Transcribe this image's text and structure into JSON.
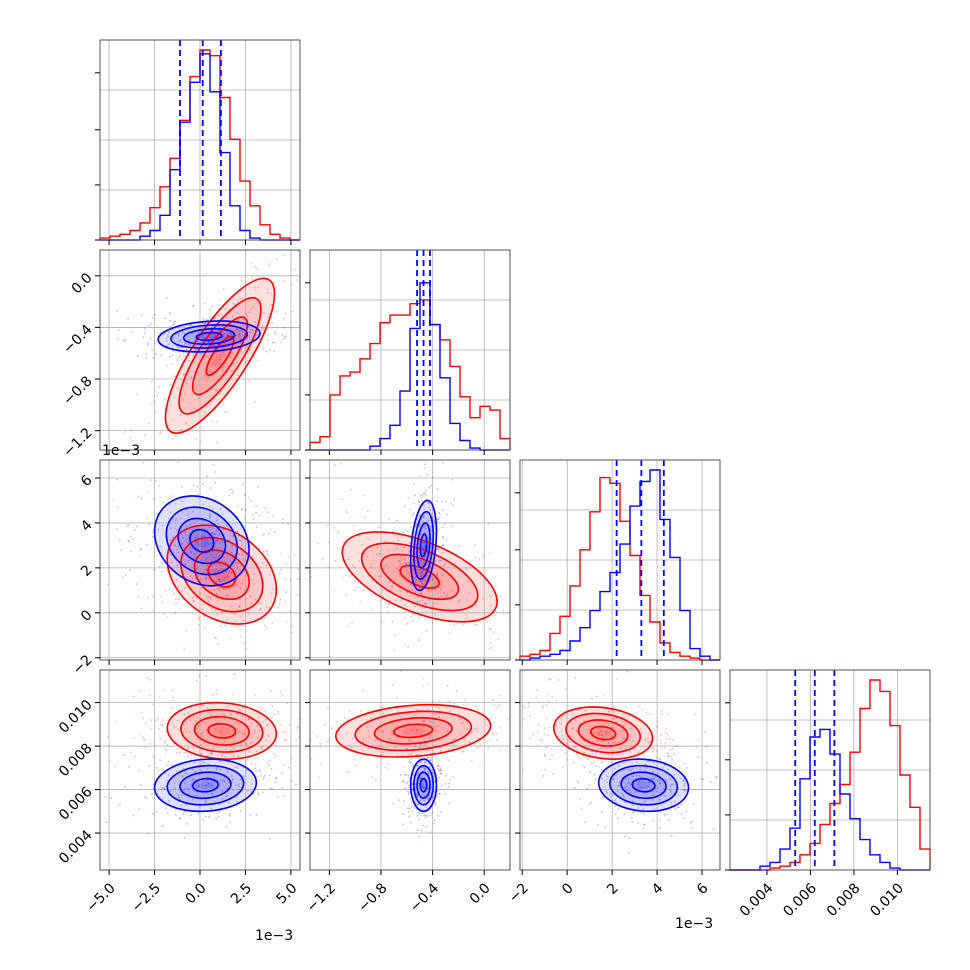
{
  "chart_data": {
    "type": "corner",
    "series": [
      {
        "name": "",
        "color": "#0000ff"
      },
      {
        "name": "",
        "color": "#ff0000"
      }
    ],
    "params": [
      {
        "range": [
          -5.5,
          5.5
        ],
        "ticks": [
          -5.0,
          -2.5,
          0.0,
          2.5,
          5.0
        ],
        "tick_labels": [
          "−5.0",
          "−2.5",
          "0.0",
          "2.5",
          "5.0"
        ],
        "offset_label": "1e−3",
        "quantiles_blue": [
          -1.1,
          0.15,
          1.15
        ],
        "hist_blue": [
          0,
          0,
          0,
          0,
          0.02,
          0.05,
          0.13,
          0.37,
          0.62,
          0.83,
          0.98,
          0.78,
          0.46,
          0.18,
          0.05,
          0.01,
          0,
          0,
          0,
          0
        ],
        "hist_red": [
          0.01,
          0.02,
          0.03,
          0.05,
          0.09,
          0.17,
          0.28,
          0.43,
          0.63,
          0.86,
          1.0,
          0.97,
          0.75,
          0.53,
          0.31,
          0.18,
          0.08,
          0.03,
          0.01,
          0
        ]
      },
      {
        "range": [
          -1.35,
          0.2
        ],
        "ticks": [
          -1.2,
          -0.8,
          -0.4,
          0.0
        ],
        "tick_labels": [
          "−1.2",
          "−0.8",
          "−0.4",
          "0.0"
        ],
        "offset_label": "1e−3",
        "quantiles_blue": [
          -0.52,
          -0.47,
          -0.42
        ],
        "hist_blue": [
          0,
          0,
          0,
          0,
          0,
          0,
          0.02,
          0.06,
          0.13,
          0.31,
          0.64,
          0.88,
          0.66,
          0.38,
          0.14,
          0.05,
          0.01,
          0,
          0,
          0
        ],
        "hist_red": [
          0.04,
          0.07,
          0.29,
          0.39,
          0.41,
          0.48,
          0.56,
          0.67,
          0.71,
          0.71,
          0.77,
          0.79,
          0.66,
          0.58,
          0.44,
          0.28,
          0.17,
          0.23,
          0.21,
          0.06
        ]
      },
      {
        "range": [
          -2.1,
          6.8
        ],
        "ticks": [
          -2,
          0,
          2,
          4,
          6
        ],
        "tick_labels": [
          "−2",
          "0",
          "2",
          "4",
          "6"
        ],
        "offset_label": "1e−3",
        "quantiles_blue": [
          2.2,
          3.3,
          4.3
        ],
        "hist_blue": [
          0,
          0.01,
          0.02,
          0.03,
          0.05,
          0.1,
          0.17,
          0.26,
          0.36,
          0.46,
          0.61,
          0.81,
          0.94,
          1.0,
          0.74,
          0.54,
          0.26,
          0.06,
          0.02,
          0
        ],
        "hist_red": [
          0.02,
          0.03,
          0.05,
          0.14,
          0.23,
          0.39,
          0.58,
          0.78,
          0.96,
          0.93,
          0.73,
          0.55,
          0.34,
          0.2,
          0.09,
          0.04,
          0.02,
          0.01,
          0,
          0
        ],
        "hist_max": 0.98
      },
      {
        "range": [
          0.0023,
          0.0115
        ],
        "ticks": [
          0.004,
          0.006,
          0.008,
          0.01
        ],
        "tick_labels": [
          "0.004",
          "0.006",
          "0.008",
          "0.010"
        ],
        "offset_label": "",
        "quantiles_blue": [
          0.0053,
          0.0062,
          0.0071
        ],
        "hist_blue": [
          0,
          0,
          0,
          0.02,
          0.04,
          0.11,
          0.22,
          0.48,
          0.7,
          0.74,
          0.61,
          0.4,
          0.27,
          0.16,
          0.08,
          0.04,
          0.01,
          0,
          0,
          0
        ],
        "hist_red": [
          0,
          0,
          0,
          0,
          0.01,
          0.02,
          0.04,
          0.08,
          0.14,
          0.24,
          0.35,
          0.45,
          0.62,
          0.85,
          1.0,
          0.94,
          0.76,
          0.5,
          0.33,
          0.11
        ]
      }
    ],
    "pairs": [
      {
        "x": 0,
        "y": 1,
        "blue": {
          "mean": [
            0.5,
            -0.47
          ],
          "sd": [
            1.4,
            0.06
          ],
          "rho": 0.2
        },
        "red": {
          "mean": [
            1.1,
            -0.62
          ],
          "sd": [
            1.5,
            0.3
          ],
          "rho": 0.8
        }
      },
      {
        "x": 0,
        "y": 2,
        "blue": {
          "mean": [
            0.1,
            3.2
          ],
          "sd": [
            1.3,
            1.0
          ],
          "rho": -0.2
        },
        "red": {
          "mean": [
            1.2,
            1.7
          ],
          "sd": [
            1.5,
            1.1
          ],
          "rho": -0.3
        }
      },
      {
        "x": 1,
        "y": 2,
        "blue": {
          "mean": [
            -0.47,
            3.0
          ],
          "sd": [
            0.05,
            1.0
          ],
          "rho": 0.3
        },
        "red": {
          "mean": [
            -0.5,
            1.6
          ],
          "sd": [
            0.3,
            1.0
          ],
          "rho": -0.55
        }
      },
      {
        "x": 0,
        "y": 3,
        "blue": {
          "mean": [
            0.3,
            0.0062
          ],
          "sd": [
            1.4,
            0.0006
          ],
          "rho": 0.1
        },
        "red": {
          "mean": [
            1.2,
            0.0087
          ],
          "sd": [
            1.5,
            0.00065
          ],
          "rho": -0.1
        }
      },
      {
        "x": 1,
        "y": 3,
        "blue": {
          "mean": [
            -0.47,
            0.0062
          ],
          "sd": [
            0.05,
            0.0006
          ],
          "rho": 0.0
        },
        "red": {
          "mean": [
            -0.55,
            0.0087
          ],
          "sd": [
            0.3,
            0.0006
          ],
          "rho": 0.2
        }
      },
      {
        "x": 2,
        "y": 3,
        "blue": {
          "mean": [
            3.4,
            0.0062
          ],
          "sd": [
            1.0,
            0.0006
          ],
          "rho": -0.1
        },
        "red": {
          "mean": [
            1.6,
            0.0086
          ],
          "sd": [
            1.1,
            0.0006
          ],
          "rho": -0.2
        }
      }
    ],
    "contour_levels_sigma": [
      0.5,
      1.0,
      1.5,
      2.0
    ],
    "grid": true
  }
}
